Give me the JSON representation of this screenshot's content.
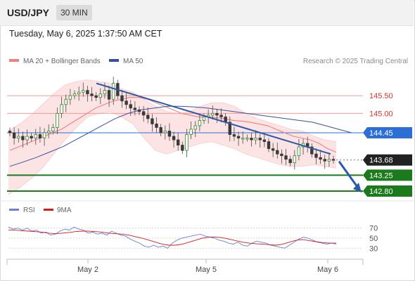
{
  "header": {
    "symbol": "USD/JPY",
    "timeframe": "30 MIN"
  },
  "datetime": "Tuesday, May 6, 2025 1:37:50 AM CET",
  "legend": {
    "ma20": "MA 20 + Bollinger Bands",
    "ma50": "MA 50",
    "credit": "Research © 2025 Trading Central"
  },
  "colors": {
    "ma20": "#f08080",
    "ma50": "#3a4f9e",
    "band": "#fde4e4",
    "level_red": "#f49a9a",
    "level_blue": "#2b6fd6",
    "level_green": "#1b7a1b",
    "rsi": "#6a7fd8",
    "rsi_ma": "#d81b1b",
    "arrow": "#2b5aa8",
    "current": "#222222"
  },
  "chart_data": [
    {
      "type": "candlestick",
      "title": "",
      "x_ticks": [
        "May 2",
        "May 5",
        "May 6"
      ],
      "y_ticks": [
        145.5,
        145.0,
        144.45,
        143.68,
        143.25,
        142.8
      ],
      "ylim": [
        142.6,
        146.3
      ],
      "price_levels": [
        {
          "name": "resistance_2",
          "value": 145.5,
          "label": "145.50",
          "style": "red"
        },
        {
          "name": "resistance_1",
          "value": 145.0,
          "label": "145.00",
          "style": "red"
        },
        {
          "name": "pivot",
          "value": 144.45,
          "label": "144.45",
          "style": "blue"
        },
        {
          "name": "current",
          "value": 143.68,
          "label": "143.68",
          "style": "current"
        },
        {
          "name": "support_1",
          "value": 143.25,
          "label": "143.25",
          "style": "green"
        },
        {
          "name": "support_2",
          "value": 142.8,
          "label": "142.80",
          "style": "green"
        }
      ],
      "close_path": [
        144.45,
        144.3,
        144.35,
        144.25,
        144.35,
        144.3,
        144.4,
        144.3,
        144.45,
        144.5,
        144.6,
        145.0,
        145.25,
        145.4,
        145.5,
        145.55,
        145.6,
        145.65,
        145.55,
        145.5,
        145.45,
        145.55,
        145.65,
        145.4,
        145.85,
        145.5,
        145.35,
        145.25,
        145.15,
        145.1,
        145.05,
        144.95,
        144.85,
        144.7,
        144.6,
        144.45,
        144.5,
        144.35,
        144.25,
        144.1,
        143.95,
        144.4,
        144.55,
        144.65,
        144.8,
        144.9,
        144.95,
        145.0,
        144.95,
        144.9,
        144.75,
        144.4,
        144.35,
        144.3,
        144.3,
        144.3,
        144.25,
        144.3,
        144.25,
        144.2,
        144.0,
        143.95,
        143.85,
        143.8,
        143.7,
        143.6,
        143.8,
        144.05,
        144.15,
        144.05,
        143.85,
        143.75,
        143.7,
        143.65,
        143.7,
        143.68
      ],
      "ma20": [
        143.95,
        144.05,
        144.15,
        144.25,
        144.35,
        144.45,
        144.55,
        144.7,
        144.85,
        145.0,
        145.15,
        145.25,
        145.35,
        145.4,
        145.45,
        145.45,
        145.4,
        145.3,
        145.2,
        145.1,
        145.0,
        144.95,
        144.9,
        144.9,
        144.88,
        144.85,
        144.8,
        144.78,
        144.75,
        144.7,
        144.65,
        144.55,
        144.45,
        144.35,
        144.3,
        144.25,
        144.15,
        144.0,
        143.9
      ],
      "bollinger_upper": [
        144.5,
        144.7,
        144.95,
        145.25,
        145.55,
        145.8,
        145.9,
        145.95,
        145.9,
        145.85,
        145.7,
        145.6,
        145.4,
        145.2,
        145.05,
        145.0,
        145.05,
        145.2,
        145.3,
        145.3,
        145.2,
        145.0,
        144.85,
        144.75,
        144.65,
        144.55,
        144.5,
        144.35,
        144.25,
        144.2
      ],
      "bollinger_lower": [
        142.7,
        142.9,
        143.15,
        143.45,
        143.85,
        144.25,
        144.6,
        144.9,
        145.0,
        145.05,
        144.9,
        144.7,
        144.3,
        143.95,
        143.85,
        143.95,
        144.05,
        144.15,
        144.2,
        144.1,
        144.0,
        143.85,
        143.75,
        143.65,
        143.55,
        143.5,
        143.5,
        143.55,
        143.5,
        143.45
      ],
      "ma50": [
        143.5,
        143.62,
        143.75,
        143.9,
        144.05,
        144.25,
        144.45,
        144.65,
        144.85,
        145.0,
        145.1,
        145.15,
        145.2,
        145.2,
        145.18,
        145.15,
        145.1,
        145.05,
        145.0,
        144.95,
        144.9,
        144.85,
        144.8,
        144.75,
        144.65,
        144.55,
        144.45
      ],
      "trendline": {
        "start": 145.85,
        "end": 143.85
      },
      "projection": {
        "from": 143.68,
        "to": 142.8
      }
    },
    {
      "type": "line",
      "title": "",
      "series": [
        {
          "name": "RSI"
        },
        {
          "name": "9MA"
        }
      ],
      "y_ticks": [
        70,
        50,
        30
      ],
      "ylim": [
        15,
        85
      ],
      "rsi": [
        72,
        68,
        70,
        66,
        70,
        64,
        66,
        60,
        62,
        56,
        58,
        64,
        68,
        66,
        72,
        68,
        66,
        60,
        62,
        58,
        60,
        56,
        64,
        60,
        56,
        54,
        48,
        44,
        40,
        34,
        32,
        36,
        32,
        34,
        30,
        40,
        46,
        50,
        52,
        54,
        56,
        58,
        54,
        52,
        50,
        46,
        44,
        40,
        38,
        42,
        36,
        34,
        40,
        44,
        42,
        40,
        36,
        34,
        32,
        30,
        36,
        42,
        48,
        52,
        50,
        46,
        42,
        40,
        38,
        40,
        38
      ],
      "rsi_ma": [
        66,
        66,
        65,
        64,
        63,
        62,
        60,
        59,
        60,
        61,
        63,
        64,
        64,
        63,
        62,
        60,
        59,
        58,
        56,
        53,
        50,
        46,
        42,
        38,
        36,
        36,
        38,
        42,
        46,
        50,
        52,
        52,
        51,
        48,
        45,
        42,
        40,
        39,
        38,
        37,
        36,
        38,
        42,
        46,
        47,
        45,
        43,
        41,
        40,
        40
      ]
    }
  ]
}
